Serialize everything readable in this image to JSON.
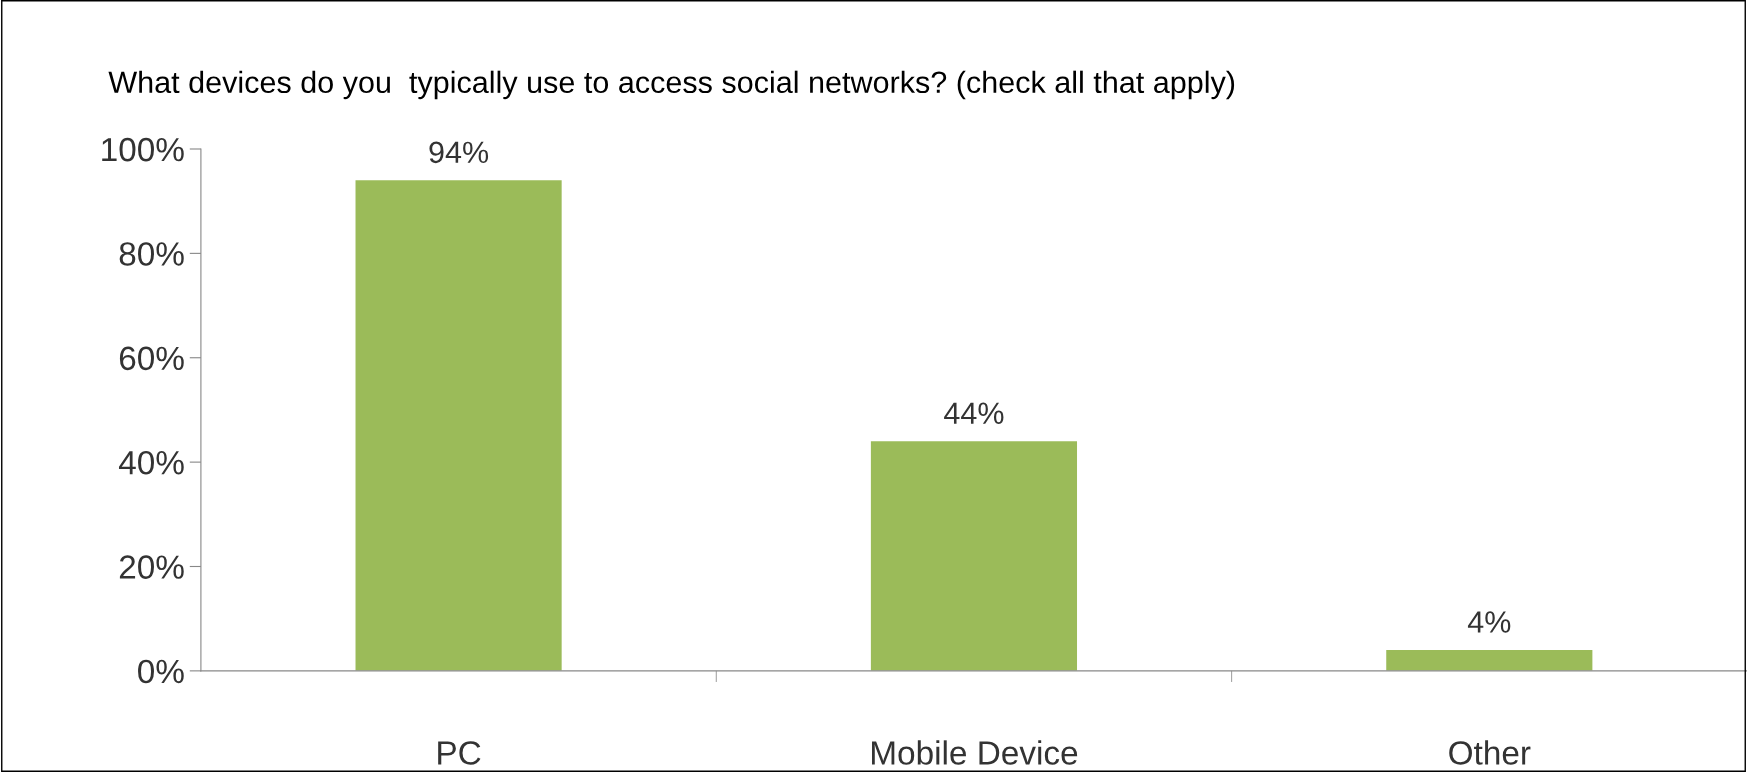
{
  "chart_data": {
    "type": "bar",
    "title": "What devices do you  typically use to access social networks? (check all that apply)",
    "categories": [
      "PC",
      "Mobile Device",
      "Other"
    ],
    "values": [
      94,
      44,
      4
    ],
    "color": "#9bbb59",
    "value_labels": [
      "94%",
      "44%",
      "4%"
    ],
    "ylim": [
      0,
      100
    ],
    "yticks": [
      {
        "value": 0,
        "label": "0%"
      },
      {
        "value": 20,
        "label": "20%"
      },
      {
        "value": 40,
        "label": "40%"
      },
      {
        "value": 60,
        "label": "60%"
      },
      {
        "value": 80,
        "label": "80%"
      },
      {
        "value": 100,
        "label": "100%"
      }
    ],
    "grid": false,
    "legend": false
  }
}
